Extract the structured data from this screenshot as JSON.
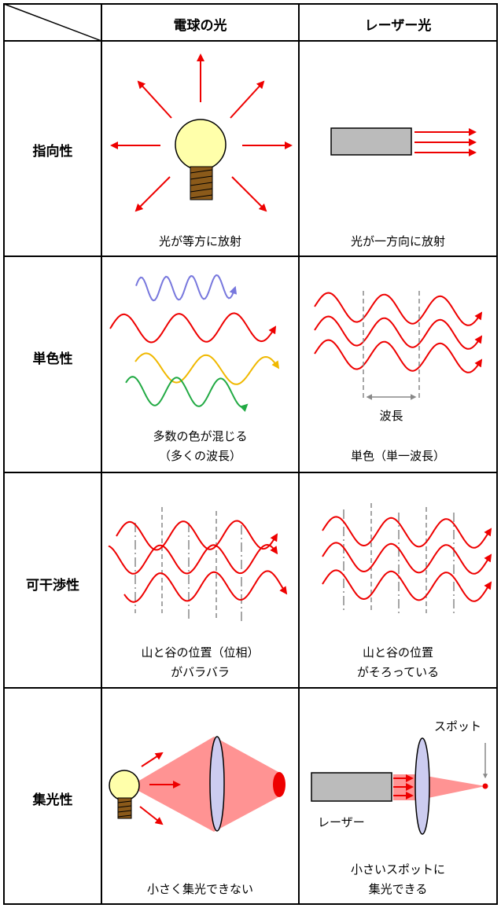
{
  "header": {
    "col1": "電球の光",
    "col2": "レーザー光"
  },
  "rows": [
    {
      "label": "指向性",
      "bulb_caption": "光が等方に放射",
      "laser_caption": "光が一方向に放射"
    },
    {
      "label": "単色性",
      "bulb_caption_1": "多数の色が混じる",
      "bulb_caption_2": "（多くの波長）",
      "wavelength_label": "波長",
      "laser_caption": "単色（単一波長）"
    },
    {
      "label": "可干渉性",
      "bulb_caption_1": "山と谷の位置（位相）",
      "bulb_caption_2": "がバラバラ",
      "laser_caption_1": "山と谷の位置",
      "laser_caption_2": "がそろっている"
    },
    {
      "label": "集光性",
      "bulb_caption": "小さく集光できない",
      "spot_label": "スポット",
      "laser_label": "レーザー",
      "laser_caption_1": "小さいスポットに",
      "laser_caption_2": "集光できる"
    }
  ],
  "colors": {
    "red": "#ee0000",
    "blue": "#7777dd",
    "yellow": "#f0b800",
    "green": "#22aa44",
    "bulb": "#ffffaa",
    "gray": "#bbbbbb",
    "beam": "#ff8080",
    "lens": "#ccccf0"
  }
}
